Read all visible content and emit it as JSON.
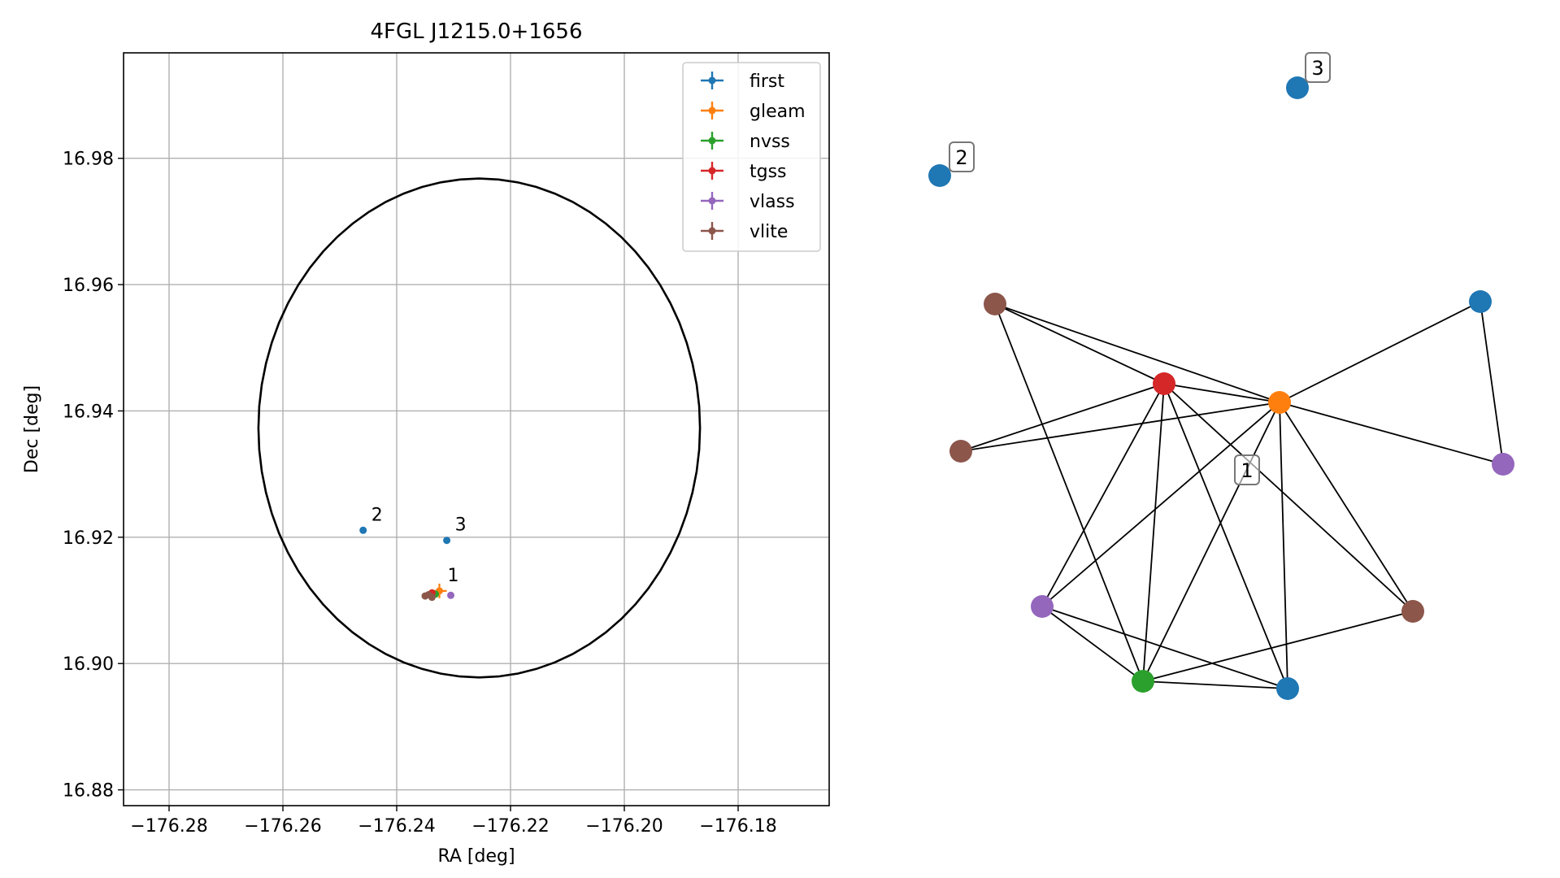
{
  "chart_data": [
    {
      "type": "scatter",
      "title": "4FGL J1215.0+1656",
      "xlabel": "RA [deg]",
      "ylabel": "Dec [deg]",
      "xlim": [
        -176.288,
        -176.164
      ],
      "ylim": [
        16.8775,
        16.9967
      ],
      "xticks": [
        -176.28,
        -176.26,
        -176.24,
        -176.22,
        -176.2,
        -176.18
      ],
      "xtick_labels": [
        "−176.28",
        "−176.26",
        "−176.24",
        "−176.22",
        "−176.20",
        "−176.18"
      ],
      "yticks": [
        16.88,
        16.9,
        16.92,
        16.94,
        16.96,
        16.98
      ],
      "ytick_labels": [
        "16.88",
        "16.90",
        "16.92",
        "16.94",
        "16.96",
        "16.98"
      ],
      "grid": true,
      "legend_position": "top-right",
      "ellipse": {
        "center_x": -176.2255,
        "center_y": 16.9373,
        "semi_axis_x": 0.0388,
        "semi_axis_y": 0.0395,
        "color": "#000000"
      },
      "series": [
        {
          "name": "first",
          "color": "#1f77b4",
          "points": [
            {
              "x": -176.2459,
              "y": 16.9211,
              "label": "2"
            },
            {
              "x": -176.2312,
              "y": 16.9195,
              "label": "3"
            }
          ]
        },
        {
          "name": "gleam",
          "color": "#ff7f0e",
          "points": [
            {
              "x": -176.2325,
              "y": 16.9115,
              "label": "1"
            }
          ]
        },
        {
          "name": "nvss",
          "color": "#2ca02c",
          "points": [
            {
              "x": -176.2332,
              "y": 16.911
            }
          ]
        },
        {
          "name": "tgss",
          "color": "#d62728",
          "points": [
            {
              "x": -176.2338,
              "y": 16.9112
            }
          ]
        },
        {
          "name": "vlass",
          "color": "#9467bd",
          "points": [
            {
              "x": -176.2305,
              "y": 16.9108
            }
          ]
        },
        {
          "name": "vlite",
          "color": "#8c564b",
          "points": [
            {
              "x": -176.235,
              "y": 16.9107
            },
            {
              "x": -176.2338,
              "y": 16.9105
            },
            {
              "x": -176.2344,
              "y": 16.9109
            }
          ]
        }
      ]
    }
  ],
  "graph": {
    "type": "network",
    "labels": [
      {
        "id": "L1",
        "text": "1"
      },
      {
        "id": "L2",
        "text": "2"
      },
      {
        "id": "L3",
        "text": "3"
      }
    ],
    "nodes": [
      {
        "id": "F2",
        "catalog": "first",
        "color": "#1f77b4"
      },
      {
        "id": "F3",
        "catalog": "first",
        "color": "#1f77b4"
      },
      {
        "id": "V1",
        "catalog": "vlite",
        "color": "#8c564b"
      },
      {
        "id": "F1",
        "catalog": "first",
        "color": "#1f77b4"
      },
      {
        "id": "T",
        "catalog": "tgss",
        "color": "#d62728"
      },
      {
        "id": "G",
        "catalog": "gleam",
        "color": "#ff7f0e"
      },
      {
        "id": "V2",
        "catalog": "vlite",
        "color": "#8c564b"
      },
      {
        "id": "P1",
        "catalog": "vlass",
        "color": "#9467bd"
      },
      {
        "id": "P2",
        "catalog": "vlass",
        "color": "#9467bd"
      },
      {
        "id": "V3",
        "catalog": "vlite",
        "color": "#8c564b"
      },
      {
        "id": "N",
        "catalog": "nvss",
        "color": "#2ca02c"
      },
      {
        "id": "F4",
        "catalog": "first",
        "color": "#1f77b4"
      }
    ],
    "edges": [
      [
        "V1",
        "T"
      ],
      [
        "V1",
        "G"
      ],
      [
        "V1",
        "N"
      ],
      [
        "V2",
        "T"
      ],
      [
        "V2",
        "G"
      ],
      [
        "T",
        "G"
      ],
      [
        "T",
        "P2"
      ],
      [
        "T",
        "N"
      ],
      [
        "T",
        "F4"
      ],
      [
        "T",
        "V3"
      ],
      [
        "G",
        "F1"
      ],
      [
        "G",
        "P1"
      ],
      [
        "G",
        "P2"
      ],
      [
        "G",
        "N"
      ],
      [
        "G",
        "F4"
      ],
      [
        "G",
        "V3"
      ],
      [
        "F1",
        "P1"
      ],
      [
        "P2",
        "N"
      ],
      [
        "P2",
        "F4"
      ],
      [
        "N",
        "F4"
      ],
      [
        "N",
        "V3"
      ]
    ]
  }
}
